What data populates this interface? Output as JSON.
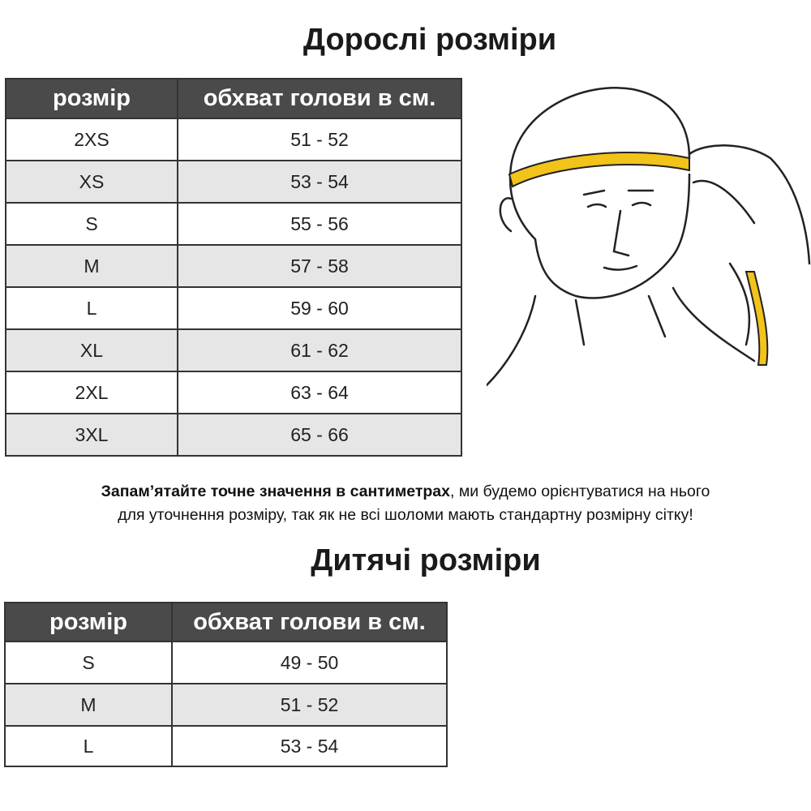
{
  "adult": {
    "title": "Дорослі розміри",
    "headers": [
      "розмір",
      "обхват голови в см."
    ],
    "rows": [
      [
        "2XS",
        "51 - 52"
      ],
      [
        "XS",
        "53 - 54"
      ],
      [
        "S",
        "55 - 56"
      ],
      [
        "M",
        "57 - 58"
      ],
      [
        "L",
        "59 - 60"
      ],
      [
        "XL",
        "61 - 62"
      ],
      [
        "2XL",
        "63 - 64"
      ],
      [
        "3XL",
        "65 - 66"
      ]
    ]
  },
  "note": {
    "bold": "Запам’ятайте точне значення в сантиметрах",
    "line1_rest": ", ми будемо орієнтуватися на нього",
    "line2": "для уточнення розміру, так як не всі шоломи мають стандартну розмірну сітку!"
  },
  "kids": {
    "title": "Дитячі розміри",
    "headers": [
      "розмір",
      "обхват голови в см."
    ],
    "rows": [
      [
        "S",
        "49 - 50"
      ],
      [
        "M",
        "51 - 52"
      ],
      [
        "L",
        "53 - 54"
      ]
    ]
  },
  "illustration": {
    "subject": "head-measuring-tape",
    "tape_color": "#f2c318"
  }
}
